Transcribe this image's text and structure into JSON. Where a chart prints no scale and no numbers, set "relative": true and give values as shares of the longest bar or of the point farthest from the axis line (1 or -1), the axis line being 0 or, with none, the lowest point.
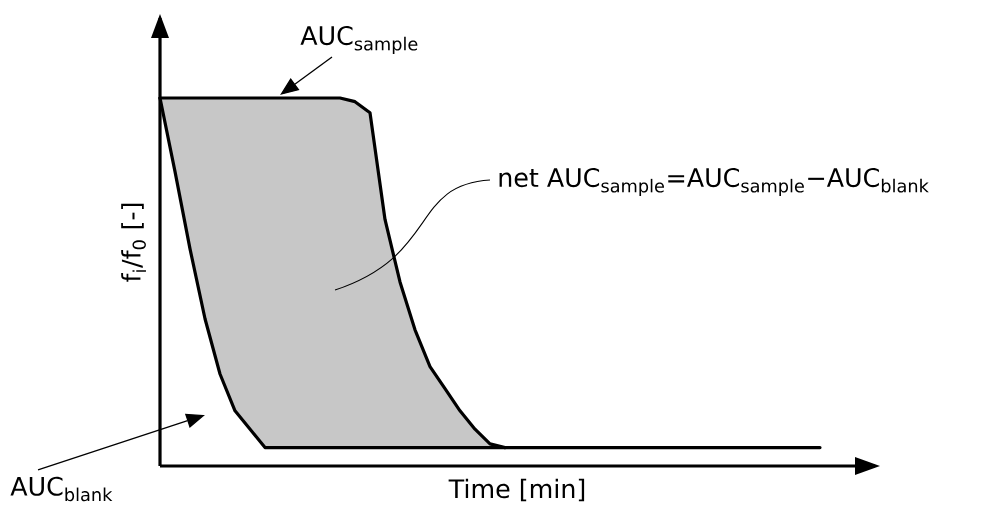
{
  "chart_data": {
    "type": "line",
    "relative": true,
    "xlabel": "Time [min]",
    "ylabel": "f$_{i}$/f$_{0}$ [-]",
    "categories": [
      null,
      null,
      null,
      null,
      null,
      null,
      null,
      null,
      null,
      null,
      null,
      null,
      null,
      null,
      null,
      null,
      null,
      null,
      null,
      null,
      null,
      null,
      null,
      null,
      null,
      null,
      null,
      null,
      null,
      null,
      null,
      null,
      null,
      null,
      null,
      null,
      null,
      null,
      null,
      null,
      null,
      null,
      null,
      null,
      null
    ],
    "series": [
      {
        "color": "#000000",
        "values": [
          1.0,
          1.0,
          1.0,
          1.0,
          1.0,
          1.0,
          1.0,
          1.0,
          1.0,
          1.0,
          1.0,
          1.0,
          1.0,
          0.99,
          0.96,
          0.67,
          0.5,
          0.37,
          0.27,
          0.21,
          0.15,
          0.1,
          0.06,
          0.05,
          null,
          null,
          null,
          null,
          null,
          null,
          null,
          null,
          null,
          null,
          null,
          null,
          null,
          null,
          null,
          null,
          null,
          null,
          null,
          null,
          null
        ],
        "upper": [
          1.0,
          1.0,
          1.0,
          1.0,
          1.0,
          1.0,
          1.0,
          1.0,
          1.0,
          1.0,
          1.0,
          1.0,
          1.0,
          0.99,
          0.96,
          0.67,
          0.5,
          0.37,
          0.27,
          0.21,
          0.15,
          0.1,
          0.06,
          0.05,
          null,
          null,
          null,
          null,
          null,
          null,
          null,
          null,
          null,
          null,
          null,
          null,
          null,
          null,
          null,
          null,
          null,
          null,
          null,
          null,
          null
        ],
        "lower": [
          1.0,
          0.8,
          0.59,
          0.4,
          0.25,
          0.15,
          0.1,
          0.05,
          0.05,
          0.05,
          0.05,
          0.05,
          0.05,
          0.05,
          0.05,
          0.05,
          0.05,
          0.05,
          0.05,
          0.05,
          0.05,
          0.05,
          0.05,
          0.05,
          null,
          null,
          null,
          null,
          null,
          null,
          null,
          null,
          null,
          null,
          null,
          null,
          null,
          null,
          null,
          null,
          null,
          null,
          null,
          null,
          null
        ]
      },
      {
        "color": "#000000",
        "values": [
          1.0,
          0.8,
          0.59,
          0.4,
          0.25,
          0.15,
          0.1,
          0.05,
          0.05,
          0.05,
          0.05,
          0.05,
          0.05,
          0.05,
          0.05,
          0.05,
          0.05,
          0.05,
          0.05,
          0.05,
          0.05,
          0.05,
          0.05,
          0.05,
          0.05,
          0.05,
          0.05,
          0.05,
          0.05,
          0.05,
          0.05,
          0.05,
          0.05,
          0.05,
          0.05,
          0.05,
          0.05,
          0.05,
          0.05,
          0.05,
          0.05,
          0.05,
          0.05,
          0.05,
          0.05
        ]
      }
    ],
    "annotations": [
      "AUC$_{sample}$",
      "net AUC$_{sample}$=AUC$_{sample}$−AUC$_{blank}$",
      "AUC$_{blank}$"
    ]
  }
}
